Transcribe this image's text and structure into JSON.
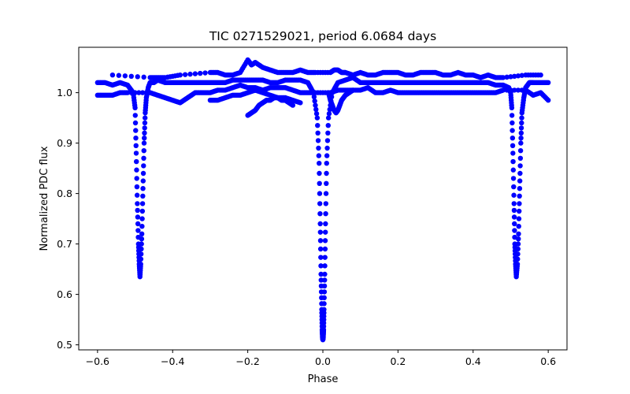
{
  "chart_data": {
    "type": "scatter",
    "title": "TIC 0271529021, period 6.0684 days",
    "xlabel": "Phase",
    "ylabel": "Normalized PDC flux",
    "xlim": [
      -0.65,
      0.65
    ],
    "ylim": [
      0.49,
      1.09
    ],
    "xticks": [
      -0.6,
      -0.4,
      -0.2,
      0.0,
      0.2,
      0.4,
      0.6
    ],
    "xtick_labels": [
      "−0.6",
      "−0.4",
      "−0.2",
      "0.0",
      "0.2",
      "0.4",
      "0.6"
    ],
    "yticks": [
      0.5,
      0.6,
      0.7,
      0.8,
      0.9,
      1.0
    ],
    "ytick_labels": [
      "0.5",
      "0.6",
      "0.7",
      "0.8",
      "0.9",
      "1.0"
    ],
    "grid": false,
    "marker_color": "#0000ff",
    "series": [
      {
        "x": [
          -0.6,
          -0.58,
          -0.56,
          -0.54,
          -0.52,
          -0.505,
          -0.5,
          -0.497,
          -0.494,
          -0.491,
          -0.489,
          -0.487,
          -0.485,
          -0.482,
          -0.479,
          -0.476,
          -0.473,
          -0.47,
          -0.465,
          -0.46,
          -0.45,
          -0.44,
          -0.42,
          -0.4,
          -0.38,
          -0.36,
          -0.34,
          -0.32,
          -0.3,
          -0.28,
          -0.26,
          -0.24,
          -0.22,
          -0.2,
          -0.18,
          -0.16,
          -0.14,
          -0.12,
          -0.1,
          -0.08,
          -0.06,
          -0.04,
          -0.025,
          -0.015,
          -0.01,
          -0.007,
          -0.005,
          -0.003,
          -0.002,
          -0.001,
          0.0,
          0.001,
          0.002,
          0.003,
          0.005,
          0.007,
          0.01,
          0.015,
          0.025,
          0.04,
          0.06,
          0.08,
          0.1,
          0.12,
          0.14,
          0.16,
          0.18,
          0.2,
          0.22,
          0.24,
          0.26,
          0.28,
          0.3,
          0.32,
          0.34,
          0.36,
          0.38,
          0.4,
          0.42,
          0.44,
          0.46,
          0.48,
          0.495,
          0.5,
          0.503,
          0.506,
          0.509,
          0.511,
          0.513,
          0.515,
          0.518,
          0.521,
          0.524,
          0.527,
          0.53,
          0.535,
          0.54,
          0.55,
          0.56,
          0.58,
          0.6
        ],
        "y": [
          1.02,
          1.02,
          1.015,
          1.02,
          1.015,
          1.0,
          0.97,
          0.88,
          0.78,
          0.7,
          0.66,
          0.635,
          0.66,
          0.72,
          0.81,
          0.9,
          0.96,
          0.99,
          1.01,
          1.02,
          1.02,
          1.025,
          1.02,
          1.02,
          1.02,
          1.02,
          1.02,
          1.02,
          1.02,
          1.02,
          1.02,
          1.025,
          1.025,
          1.025,
          1.025,
          1.025,
          1.02,
          1.02,
          1.025,
          1.025,
          1.025,
          1.02,
          1.0,
          0.95,
          0.86,
          0.74,
          0.64,
          0.57,
          0.53,
          0.515,
          0.51,
          0.515,
          0.53,
          0.57,
          0.64,
          0.74,
          0.86,
          0.95,
          1.0,
          1.02,
          1.025,
          1.03,
          1.02,
          1.02,
          1.02,
          1.02,
          1.02,
          1.02,
          1.02,
          1.02,
          1.02,
          1.02,
          1.02,
          1.02,
          1.02,
          1.02,
          1.02,
          1.02,
          1.02,
          1.02,
          1.015,
          1.015,
          1.01,
          1.0,
          0.97,
          0.88,
          0.78,
          0.7,
          0.66,
          0.635,
          0.66,
          0.72,
          0.81,
          0.9,
          0.96,
          0.99,
          1.01,
          1.02,
          1.02,
          1.02,
          1.02
        ]
      },
      {
        "x": [
          -0.6,
          -0.58,
          -0.56,
          -0.54,
          -0.52,
          -0.46,
          -0.44,
          -0.42,
          -0.4,
          -0.38,
          -0.36,
          -0.34,
          -0.32,
          -0.3,
          -0.28,
          -0.26,
          -0.24,
          -0.22,
          -0.2,
          -0.18,
          -0.16,
          -0.14,
          -0.12,
          -0.1,
          -0.08,
          -0.06,
          -0.04,
          -0.02,
          0.02,
          0.04,
          0.06,
          0.08,
          0.1,
          0.12,
          0.14,
          0.16,
          0.18,
          0.2,
          0.22,
          0.24,
          0.26,
          0.28,
          0.3,
          0.32,
          0.34,
          0.36,
          0.38,
          0.4,
          0.42,
          0.44,
          0.46,
          0.48,
          0.54,
          0.56,
          0.58,
          0.6
        ],
        "y": [
          0.995,
          0.995,
          0.995,
          1.0,
          1.0,
          1.0,
          0.995,
          0.99,
          0.985,
          0.98,
          0.99,
          1.0,
          1.0,
          1.0,
          1.005,
          1.005,
          1.01,
          1.015,
          1.01,
          1.01,
          1.005,
          1.01,
          1.01,
          1.01,
          1.005,
          1.0,
          1.0,
          1.0,
          1.0,
          1.005,
          1.005,
          1.005,
          1.005,
          1.01,
          1.0,
          1.0,
          1.005,
          1.0,
          1.0,
          1.0,
          1.0,
          1.0,
          1.0,
          1.0,
          1.0,
          1.0,
          1.0,
          1.0,
          1.0,
          1.0,
          1.0,
          1.005,
          1.005,
          0.995,
          1.0,
          0.985
        ]
      },
      {
        "x": [
          -0.56,
          -0.46,
          -0.44,
          -0.42,
          -0.38,
          -0.3,
          -0.28,
          -0.26,
          -0.24,
          -0.22,
          -0.2,
          -0.19,
          -0.18,
          -0.16,
          -0.14,
          -0.12,
          -0.1,
          -0.08,
          -0.06,
          -0.04,
          -0.02,
          0.02,
          0.03,
          0.04,
          0.05,
          0.06,
          0.08,
          0.1,
          0.12,
          0.14,
          0.16,
          0.18,
          0.2,
          0.22,
          0.24,
          0.26,
          0.28,
          0.3,
          0.32,
          0.34,
          0.36,
          0.38,
          0.4,
          0.42,
          0.44,
          0.46,
          0.48,
          0.54,
          0.58
        ],
        "y": [
          1.035,
          1.03,
          1.03,
          1.03,
          1.035,
          1.04,
          1.04,
          1.035,
          1.035,
          1.04,
          1.065,
          1.055,
          1.06,
          1.05,
          1.045,
          1.04,
          1.04,
          1.04,
          1.045,
          1.04,
          1.04,
          1.04,
          1.045,
          1.045,
          1.04,
          1.04,
          1.035,
          1.04,
          1.035,
          1.035,
          1.04,
          1.04,
          1.04,
          1.035,
          1.035,
          1.04,
          1.04,
          1.04,
          1.035,
          1.035,
          1.04,
          1.035,
          1.035,
          1.03,
          1.035,
          1.03,
          1.03,
          1.035,
          1.035
        ]
      },
      {
        "x": [
          -0.2,
          -0.19,
          -0.18,
          -0.17,
          -0.16,
          -0.15,
          -0.14,
          -0.13,
          -0.12,
          -0.11,
          -0.1,
          -0.09,
          -0.08
        ],
        "y": [
          0.955,
          0.96,
          0.965,
          0.975,
          0.98,
          0.985,
          0.985,
          0.99,
          0.99,
          0.985,
          0.985,
          0.98,
          0.975
        ]
      },
      {
        "x": [
          -0.3,
          -0.28,
          -0.26,
          -0.24,
          -0.22,
          -0.2,
          -0.18,
          -0.16,
          -0.14,
          -0.12,
          -0.1,
          -0.08,
          -0.06
        ],
        "y": [
          0.985,
          0.985,
          0.99,
          0.995,
          0.995,
          1.0,
          1.005,
          1.0,
          0.995,
          0.99,
          0.99,
          0.985,
          0.98
        ]
      },
      {
        "x": [
          0.015,
          0.02,
          0.025,
          0.03,
          0.035,
          0.04,
          0.045,
          0.05,
          0.06,
          0.07,
          0.08
        ],
        "y": [
          1.0,
          0.985,
          0.975,
          0.965,
          0.96,
          0.965,
          0.975,
          0.985,
          0.995,
          1.0,
          1.005
        ]
      }
    ]
  }
}
